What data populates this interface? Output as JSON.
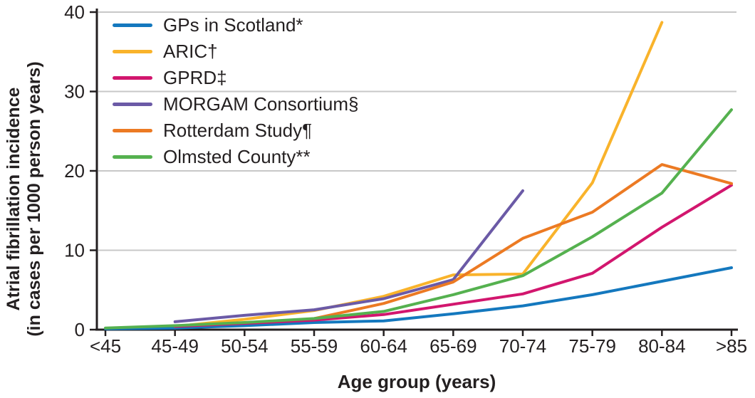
{
  "figure": {
    "background": "#ffffff",
    "axis_color": "#231f20",
    "grid_color": "#c8c8c8",
    "text_color": "#231f20"
  },
  "chart_data": {
    "type": "line",
    "title": "",
    "xlabel": "Age group (years)",
    "ylabel_line1": "Atrial fibrillation incidence",
    "ylabel_line2": "(in cases per 1000 person years)",
    "categories": [
      "<45",
      "45-49",
      "50-54",
      "55-59",
      "60-64",
      "65-69",
      "70-74",
      "75-79",
      "80-84",
      ">85"
    ],
    "yticks": [
      0,
      10,
      20,
      30,
      40
    ],
    "ylim": [
      0,
      40
    ],
    "grid": "horizontal",
    "legend_position": "top-left",
    "series": [
      {
        "name": "GPs in Scotland*",
        "color": "#1478BE",
        "values": [
          0.1,
          0.2,
          0.5,
          0.9,
          1.1,
          2.0,
          3.0,
          4.4,
          6.1,
          7.8
        ]
      },
      {
        "name": "ARIC†",
        "color": "#F9B32B",
        "values": [
          null,
          0.4,
          1.3,
          2.4,
          4.2,
          6.9,
          7.0,
          18.5,
          38.7,
          null
        ]
      },
      {
        "name": "GPRD‡",
        "color": "#D2166E",
        "values": [
          null,
          0.4,
          0.8,
          1.2,
          1.9,
          3.2,
          4.5,
          7.1,
          12.9,
          18.2
        ]
      },
      {
        "name": "MORGAM Consortium§",
        "color": "#6B5AA6",
        "values": [
          null,
          1.0,
          1.8,
          2.5,
          3.9,
          6.3,
          17.5,
          null,
          null,
          null
        ]
      },
      {
        "name": "Rotterdam Study¶",
        "color": "#EC7A23",
        "values": [
          null,
          null,
          null,
          1.4,
          3.3,
          6.0,
          11.5,
          14.8,
          20.8,
          18.4
        ]
      },
      {
        "name": "Olmsted County**",
        "color": "#55B14F",
        "values": [
          0.2,
          0.5,
          0.9,
          1.4,
          2.3,
          4.4,
          6.8,
          11.7,
          17.2,
          27.7
        ]
      }
    ]
  }
}
